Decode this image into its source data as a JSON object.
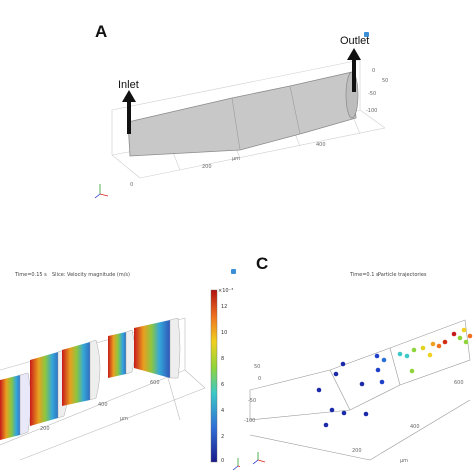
{
  "panels": {
    "a": {
      "letter": "A",
      "inlet_label": "Inlet",
      "outlet_label": "Outlet",
      "axis_unit": "µm",
      "tick_200": "200",
      "tick_400": "400",
      "tick_0": "0",
      "tick_y0": "0",
      "tick_m50": "-50",
      "tick_m100": "-100",
      "tick_50": "50"
    },
    "b": {
      "time_label": "Time=0.15 s",
      "plot_title": "Slice: Velocity magnitude (m/s)",
      "axis_unit": "µm",
      "tick_200": "200",
      "tick_400": "400",
      "tick_600": "600",
      "colorbar_exp": "×10⁻³",
      "colorbar_ticks": [
        "12",
        "10",
        "8",
        "6",
        "4",
        "2",
        "0"
      ]
    },
    "c": {
      "letter": "C",
      "time_label": "Time=0.1 s",
      "plot_title": "Particle trajectories",
      "axis_unit": "µm",
      "tick_200": "200",
      "tick_400": "400",
      "tick_600": "600",
      "tick_0": "0",
      "tick_m50": "-50",
      "tick_m100": "-100",
      "tick_50": "50"
    }
  },
  "colors": {
    "channel_fill": "#c8c8c8",
    "channel_edge": "#8a8a8a",
    "arrow": "#111111",
    "logo_blue": "#3b8fd6"
  }
}
